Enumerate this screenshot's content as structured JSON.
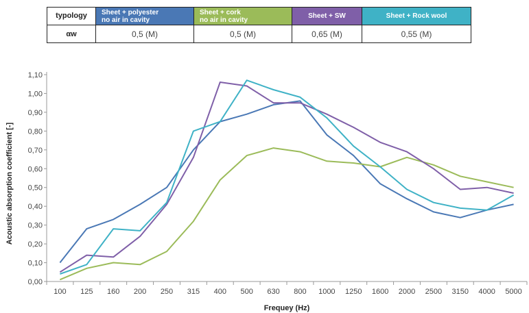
{
  "table": {
    "header_label": "typology",
    "row_label": "αw",
    "columns": [
      {
        "line1": "Sheet + polyester",
        "line2": "no air in cavity",
        "value": "0,5 (M)",
        "color": "#4a78b5"
      },
      {
        "line1": "Sheet + cork",
        "line2": "no air in cavity",
        "value": "0,5 (M)",
        "color": "#9bbb59"
      },
      {
        "line1": "Sheet + SW",
        "line2": "",
        "value": "0,65 (M)",
        "color": "#7f5fa8"
      },
      {
        "line1": "Sheet + Rock wool",
        "line2": "",
        "value": "0,55 (M)",
        "color": "#3fb2c6"
      }
    ]
  },
  "chart_data": {
    "type": "line",
    "xlabel": "Frequey (Hz)",
    "ylabel": "Acoustic absorption coefficient [-]",
    "categories": [
      "100",
      "125",
      "160",
      "200",
      "250",
      "315",
      "400",
      "500",
      "630",
      "800",
      "1000",
      "1250",
      "1600",
      "2000",
      "2500",
      "3150",
      "4000",
      "5000"
    ],
    "ylim": [
      0,
      1.1
    ],
    "yticks": [
      "0,00",
      "0,10",
      "0,20",
      "0,30",
      "0,40",
      "0,50",
      "0,60",
      "0,70",
      "0,80",
      "0,90",
      "1,00",
      "1,10"
    ],
    "grid": false,
    "series": [
      {
        "name": "Sheet + polyester no air in cavity",
        "color": "#4a78b5",
        "values": [
          0.1,
          0.28,
          0.33,
          0.41,
          0.5,
          0.7,
          0.85,
          0.89,
          0.94,
          0.96,
          0.78,
          0.67,
          0.52,
          0.44,
          0.37,
          0.34,
          0.38,
          0.41
        ]
      },
      {
        "name": "Sheet + cork no air in cavity",
        "color": "#9bbb59",
        "values": [
          0.01,
          0.07,
          0.1,
          0.09,
          0.16,
          0.32,
          0.54,
          0.67,
          0.71,
          0.69,
          0.64,
          0.63,
          0.61,
          0.66,
          0.62,
          0.56,
          0.53,
          0.5
        ]
      },
      {
        "name": "Sheet + SW",
        "color": "#7f5fa8",
        "values": [
          0.05,
          0.14,
          0.13,
          0.24,
          0.41,
          0.66,
          1.06,
          1.04,
          0.95,
          0.95,
          0.89,
          0.82,
          0.74,
          0.69,
          0.6,
          0.49,
          0.5,
          0.47
        ]
      },
      {
        "name": "Sheet + Rock wool",
        "color": "#3fb2c6",
        "values": [
          0.04,
          0.09,
          0.28,
          0.27,
          0.42,
          0.8,
          0.85,
          1.07,
          1.02,
          0.98,
          0.87,
          0.72,
          0.61,
          0.49,
          0.42,
          0.39,
          0.38,
          0.46
        ]
      }
    ]
  }
}
